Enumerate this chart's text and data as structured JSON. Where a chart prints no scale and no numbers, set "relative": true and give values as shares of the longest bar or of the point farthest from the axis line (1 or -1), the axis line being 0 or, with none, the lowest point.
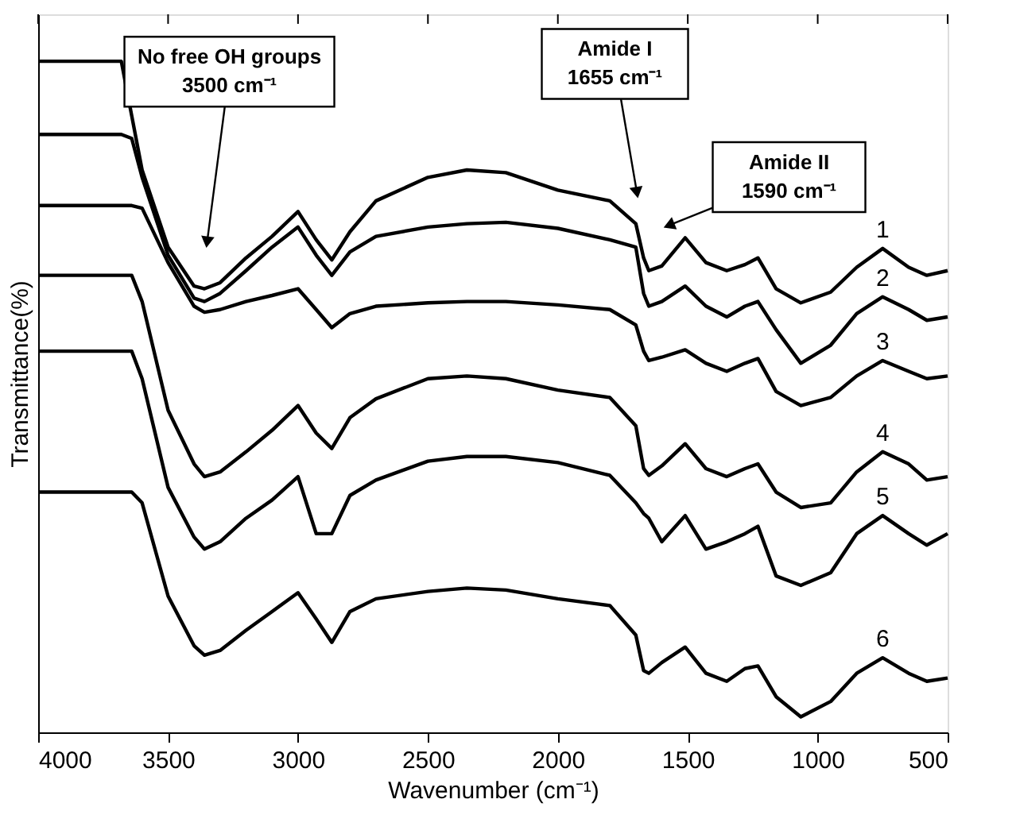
{
  "chart_data": {
    "type": "line",
    "relative": true,
    "xlabel": "Wavenumber (cm⁻¹)",
    "ylabel": "Transmittance(%)",
    "xlim": [
      4000,
      500
    ],
    "xticks": [
      {
        "value": 4000,
        "label": "4000"
      },
      {
        "value": 3500,
        "label": "3500"
      },
      {
        "value": 3000,
        "label": "3000"
      },
      {
        "value": 2500,
        "label": "2500"
      },
      {
        "value": 2000,
        "label": "2000"
      },
      {
        "value": 1500,
        "label": "1500"
      },
      {
        "value": 1000,
        "label": "1000"
      },
      500
    ],
    "tick_labels": "x",
    "grid": false,
    "legend": false,
    "marker": "none",
    "line_style": "solid",
    "x": [
      4000,
      3680,
      3640,
      3600,
      3500,
      3400,
      3360,
      3300,
      3200,
      3100,
      3000,
      2930,
      2870,
      2800,
      2700,
      2500,
      2350,
      2200,
      2000,
      1800,
      1700,
      1670,
      1650,
      1600,
      1510,
      1430,
      1350,
      1280,
      1230,
      1160,
      1065,
      950,
      850,
      750,
      650,
      580,
      500
    ],
    "series": [
      {
        "name": "1",
        "color": "#000000",
        "values": [
          1.0,
          1.0,
          0.919,
          0.838,
          0.723,
          0.665,
          0.661,
          0.67,
          0.707,
          0.739,
          0.776,
          0.734,
          0.704,
          0.746,
          0.792,
          0.827,
          0.838,
          0.834,
          0.808,
          0.792,
          0.758,
          0.707,
          0.688,
          0.695,
          0.737,
          0.7,
          0.688,
          0.697,
          0.707,
          0.661,
          0.64,
          0.656,
          0.693,
          0.721,
          0.693,
          0.681,
          0.688
        ]
      },
      {
        "name": "2",
        "color": "#000000",
        "values": [
          0.891,
          0.891,
          0.885,
          0.827,
          0.711,
          0.647,
          0.642,
          0.654,
          0.688,
          0.723,
          0.753,
          0.711,
          0.681,
          0.716,
          0.739,
          0.753,
          0.758,
          0.76,
          0.751,
          0.734,
          0.723,
          0.654,
          0.635,
          0.642,
          0.665,
          0.635,
          0.619,
          0.635,
          0.642,
          0.6,
          0.55,
          0.577,
          0.624,
          0.649,
          0.63,
          0.614,
          0.619
        ]
      },
      {
        "name": "3",
        "color": "#000000",
        "values": [
          0.785,
          0.785,
          0.785,
          0.781,
          0.7,
          0.635,
          0.626,
          0.63,
          0.642,
          0.651,
          0.661,
          0.63,
          0.603,
          0.624,
          0.635,
          0.64,
          0.642,
          0.642,
          0.637,
          0.63,
          0.607,
          0.568,
          0.554,
          0.559,
          0.57,
          0.55,
          0.538,
          0.55,
          0.557,
          0.508,
          0.487,
          0.499,
          0.531,
          0.554,
          0.538,
          0.527,
          0.531
        ]
      },
      {
        "name": "4",
        "color": "#000000",
        "values": [
          0.681,
          0.681,
          0.681,
          0.642,
          0.48,
          0.4,
          0.381,
          0.388,
          0.418,
          0.45,
          0.487,
          0.446,
          0.423,
          0.469,
          0.497,
          0.527,
          0.531,
          0.527,
          0.51,
          0.499,
          0.457,
          0.393,
          0.383,
          0.397,
          0.43,
          0.393,
          0.381,
          0.393,
          0.4,
          0.358,
          0.335,
          0.342,
          0.388,
          0.418,
          0.4,
          0.376,
          0.381
        ]
      },
      {
        "name": "5",
        "color": "#000000",
        "values": [
          0.568,
          0.568,
          0.568,
          0.527,
          0.365,
          0.291,
          0.273,
          0.284,
          0.319,
          0.346,
          0.381,
          0.296,
          0.296,
          0.353,
          0.376,
          0.404,
          0.411,
          0.411,
          0.402,
          0.383,
          0.342,
          0.326,
          0.319,
          0.284,
          0.323,
          0.273,
          0.284,
          0.296,
          0.307,
          0.233,
          0.219,
          0.238,
          0.296,
          0.323,
          0.296,
          0.279,
          0.296
        ]
      },
      {
        "name": "6",
        "color": "#000000",
        "values": [
          0.358,
          0.358,
          0.358,
          0.342,
          0.203,
          0.129,
          0.115,
          0.122,
          0.152,
          0.18,
          0.208,
          0.169,
          0.134,
          0.18,
          0.199,
          0.21,
          0.215,
          0.212,
          0.199,
          0.189,
          0.145,
          0.092,
          0.088,
          0.104,
          0.127,
          0.088,
          0.076,
          0.095,
          0.099,
          0.053,
          0.023,
          0.046,
          0.088,
          0.111,
          0.088,
          0.076,
          0.081
        ]
      }
    ],
    "annotations": [
      "No free OH groups\n3500 cm⁻¹",
      "Amide I\n1655 cm⁻¹",
      "Amide II\n1590 cm⁻¹"
    ]
  }
}
